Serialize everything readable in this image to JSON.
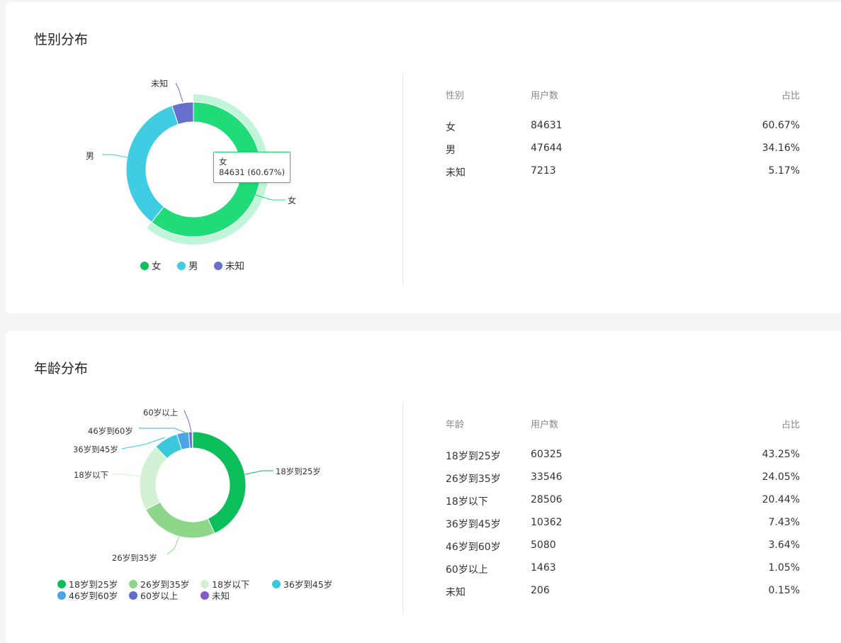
{
  "gender": {
    "title": "性别分布",
    "table_headers": [
      "性别",
      "用户数",
      "占比"
    ],
    "rows": [
      {
        "label": "女",
        "count": "84631",
        "pct": "60.67%"
      },
      {
        "label": "男",
        "count": "47644",
        "pct": "34.16%"
      },
      {
        "label": "未知",
        "count": "7213",
        "pct": "5.17%"
      }
    ],
    "tooltip": {
      "label": "女",
      "value": "84631 (60.67%)"
    }
  },
  "age": {
    "title": "年龄分布",
    "table_headers": [
      "年龄",
      "用户数",
      "占比"
    ],
    "rows": [
      {
        "label": "18岁到25岁",
        "count": "60325",
        "pct": "43.25%"
      },
      {
        "label": "26岁到35岁",
        "count": "33546",
        "pct": "24.05%"
      },
      {
        "label": "18岁以下",
        "count": "28506",
        "pct": "20.44%"
      },
      {
        "label": "36岁到45岁",
        "count": "10362",
        "pct": "7.43%"
      },
      {
        "label": "46岁到60岁",
        "count": "5080",
        "pct": "3.64%"
      },
      {
        "label": "60岁以上",
        "count": "1463",
        "pct": "1.05%"
      },
      {
        "label": "未知",
        "count": "206",
        "pct": "0.15%"
      }
    ]
  },
  "chart_data": [
    {
      "type": "pie",
      "title": "性别分布",
      "categories": [
        "女",
        "男",
        "未知"
      ],
      "values": [
        84631,
        47644,
        7213
      ],
      "colors": [
        "#1fdc78",
        "#40cde3",
        "#6670cc"
      ],
      "legend_colors": [
        "#0bbf5a",
        "#40cde3",
        "#6670cc"
      ],
      "highlighted": "女",
      "legend_position": "bottom"
    },
    {
      "type": "pie",
      "title": "年龄分布",
      "categories": [
        "18岁到25岁",
        "26岁到35岁",
        "18岁以下",
        "36岁到45岁",
        "46岁到60岁",
        "60岁以上",
        "未知"
      ],
      "values": [
        60325,
        33546,
        28506,
        10362,
        5080,
        1463,
        206
      ],
      "colors": [
        "#0abf59",
        "#8ed68a",
        "#d2f0d3",
        "#3cc8db",
        "#4ba6e8",
        "#5f6fcb",
        "#8758c8"
      ],
      "legend_position": "bottom"
    }
  ]
}
